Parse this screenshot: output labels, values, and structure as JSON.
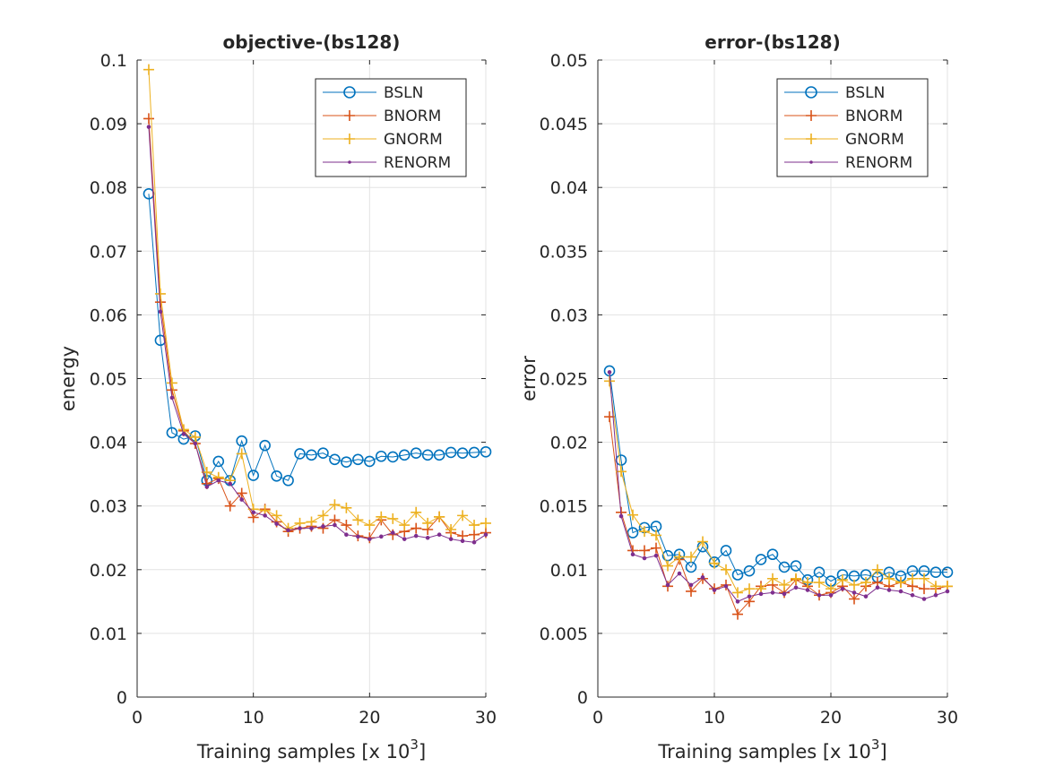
{
  "chart_data": [
    {
      "type": "line",
      "title": "objective-(bs128)",
      "xlabel": "Training samples [x 10",
      "xlabel_exponent": "3",
      "xlabel_close": "]",
      "ylabel": "energy",
      "xlim": [
        0,
        30
      ],
      "ylim": [
        0,
        0.1
      ],
      "xticks": [
        0,
        10,
        20,
        30
      ],
      "xtick_labels": [
        "0",
        "10",
        "20",
        "30"
      ],
      "yticks": [
        0,
        0.01,
        0.02,
        0.03,
        0.04,
        0.05,
        0.06,
        0.07,
        0.08,
        0.09,
        0.1
      ],
      "ytick_labels": [
        "0",
        "0.01",
        "0.02",
        "0.03",
        "0.04",
        "0.05",
        "0.06",
        "0.07",
        "0.08",
        "0.09",
        "0.1"
      ],
      "grid": true,
      "legend_position": "top-right",
      "x": [
        1,
        2,
        3,
        4,
        5,
        6,
        7,
        8,
        9,
        10,
        11,
        12,
        13,
        14,
        15,
        16,
        17,
        18,
        19,
        20,
        21,
        22,
        23,
        24,
        25,
        26,
        27,
        28,
        29,
        30
      ],
      "series": [
        {
          "name": "BSLN",
          "color": "#0072BD",
          "marker": "circle",
          "values": [
            0.079,
            0.056,
            0.0415,
            0.0405,
            0.041,
            0.034,
            0.037,
            0.034,
            0.0402,
            0.0348,
            0.0395,
            0.0347,
            0.034,
            0.0382,
            0.038,
            0.0383,
            0.0373,
            0.0369,
            0.0373,
            0.037,
            0.0378,
            0.0377,
            0.038,
            0.0383,
            0.038,
            0.038,
            0.0384,
            0.0383,
            0.0384,
            0.0385
          ]
        },
        {
          "name": "BNORM",
          "color": "#D95319",
          "marker": "plus",
          "values": [
            0.0908,
            0.062,
            0.0482,
            0.0418,
            0.0398,
            0.0335,
            0.0343,
            0.03,
            0.032,
            0.0282,
            0.0295,
            0.0275,
            0.026,
            0.0265,
            0.0268,
            0.0265,
            0.0278,
            0.027,
            0.0253,
            0.025,
            0.0278,
            0.0255,
            0.026,
            0.0265,
            0.0263,
            0.0283,
            0.0258,
            0.0253,
            0.0255,
            0.0258
          ]
        },
        {
          "name": "GNORM",
          "color": "#EDB120",
          "marker": "plus",
          "values": [
            0.0985,
            0.0633,
            0.0493,
            0.042,
            0.0408,
            0.0353,
            0.0345,
            0.034,
            0.0382,
            0.0295,
            0.0293,
            0.0285,
            0.0265,
            0.0273,
            0.0275,
            0.0285,
            0.0302,
            0.0297,
            0.0278,
            0.027,
            0.0283,
            0.028,
            0.027,
            0.029,
            0.0273,
            0.0283,
            0.0263,
            0.0285,
            0.027,
            0.0273
          ]
        },
        {
          "name": "RENORM",
          "color": "#7E2F8E",
          "marker": "dot",
          "values": [
            0.0895,
            0.0605,
            0.047,
            0.0413,
            0.0398,
            0.033,
            0.034,
            0.0335,
            0.031,
            0.029,
            0.0285,
            0.0272,
            0.0262,
            0.0265,
            0.0265,
            0.0268,
            0.027,
            0.0255,
            0.0252,
            0.0248,
            0.0252,
            0.0258,
            0.0248,
            0.0253,
            0.025,
            0.0255,
            0.0248,
            0.0245,
            0.0243,
            0.0255
          ]
        }
      ]
    },
    {
      "type": "line",
      "title": "error-(bs128)",
      "xlabel": "Training samples [x 10",
      "xlabel_exponent": "3",
      "xlabel_close": "]",
      "ylabel": "error",
      "xlim": [
        0,
        30
      ],
      "ylim": [
        0,
        0.05
      ],
      "xticks": [
        0,
        10,
        20,
        30
      ],
      "xtick_labels": [
        "0",
        "10",
        "20",
        "30"
      ],
      "yticks": [
        0,
        0.005,
        0.01,
        0.015,
        0.02,
        0.025,
        0.03,
        0.035,
        0.04,
        0.045,
        0.05
      ],
      "ytick_labels": [
        "0",
        "0.005",
        "0.01",
        "0.015",
        "0.02",
        "0.025",
        "0.03",
        "0.035",
        "0.04",
        "0.045",
        "0.05"
      ],
      "grid": true,
      "legend_position": "top-right",
      "x": [
        1,
        2,
        3,
        4,
        5,
        6,
        7,
        8,
        9,
        10,
        11,
        12,
        13,
        14,
        15,
        16,
        17,
        18,
        19,
        20,
        21,
        22,
        23,
        24,
        25,
        26,
        27,
        28,
        29,
        30
      ],
      "series": [
        {
          "name": "BSLN",
          "color": "#0072BD",
          "marker": "circle",
          "values": [
            0.0256,
            0.0186,
            0.0129,
            0.0133,
            0.0134,
            0.0111,
            0.0112,
            0.0102,
            0.0118,
            0.0106,
            0.0115,
            0.0096,
            0.0099,
            0.0108,
            0.0112,
            0.0102,
            0.0103,
            0.0092,
            0.0098,
            0.0091,
            0.0096,
            0.0095,
            0.0096,
            0.0094,
            0.0098,
            0.0095,
            0.0099,
            0.0099,
            0.0098,
            0.0098
          ]
        },
        {
          "name": "BNORM",
          "color": "#D95319",
          "marker": "plus",
          "values": [
            0.022,
            0.0145,
            0.0115,
            0.0115,
            0.0117,
            0.0087,
            0.0108,
            0.0083,
            0.0093,
            0.0085,
            0.0088,
            0.0065,
            0.0075,
            0.0087,
            0.0088,
            0.0082,
            0.0092,
            0.0087,
            0.008,
            0.0082,
            0.0087,
            0.0077,
            0.0087,
            0.009,
            0.0087,
            0.009,
            0.0087,
            0.0085,
            0.0085,
            0.0087
          ]
        },
        {
          "name": "GNORM",
          "color": "#EDB120",
          "marker": "plus",
          "values": [
            0.0248,
            0.0177,
            0.0143,
            0.013,
            0.0127,
            0.0103,
            0.011,
            0.011,
            0.0122,
            0.0105,
            0.01,
            0.0082,
            0.0085,
            0.0085,
            0.0093,
            0.0088,
            0.0093,
            0.009,
            0.009,
            0.0085,
            0.0092,
            0.0088,
            0.009,
            0.01,
            0.0093,
            0.009,
            0.0093,
            0.0093,
            0.0087,
            0.0087
          ]
        },
        {
          "name": "RENORM",
          "color": "#7E2F8E",
          "marker": "dot",
          "values": [
            0.0255,
            0.0142,
            0.0112,
            0.0109,
            0.0111,
            0.0088,
            0.0097,
            0.0088,
            0.0094,
            0.0084,
            0.0087,
            0.0075,
            0.0079,
            0.0081,
            0.0082,
            0.0081,
            0.0086,
            0.0084,
            0.008,
            0.008,
            0.0085,
            0.0082,
            0.0079,
            0.0086,
            0.0084,
            0.0083,
            0.008,
            0.0077,
            0.008,
            0.0083
          ]
        }
      ]
    }
  ]
}
